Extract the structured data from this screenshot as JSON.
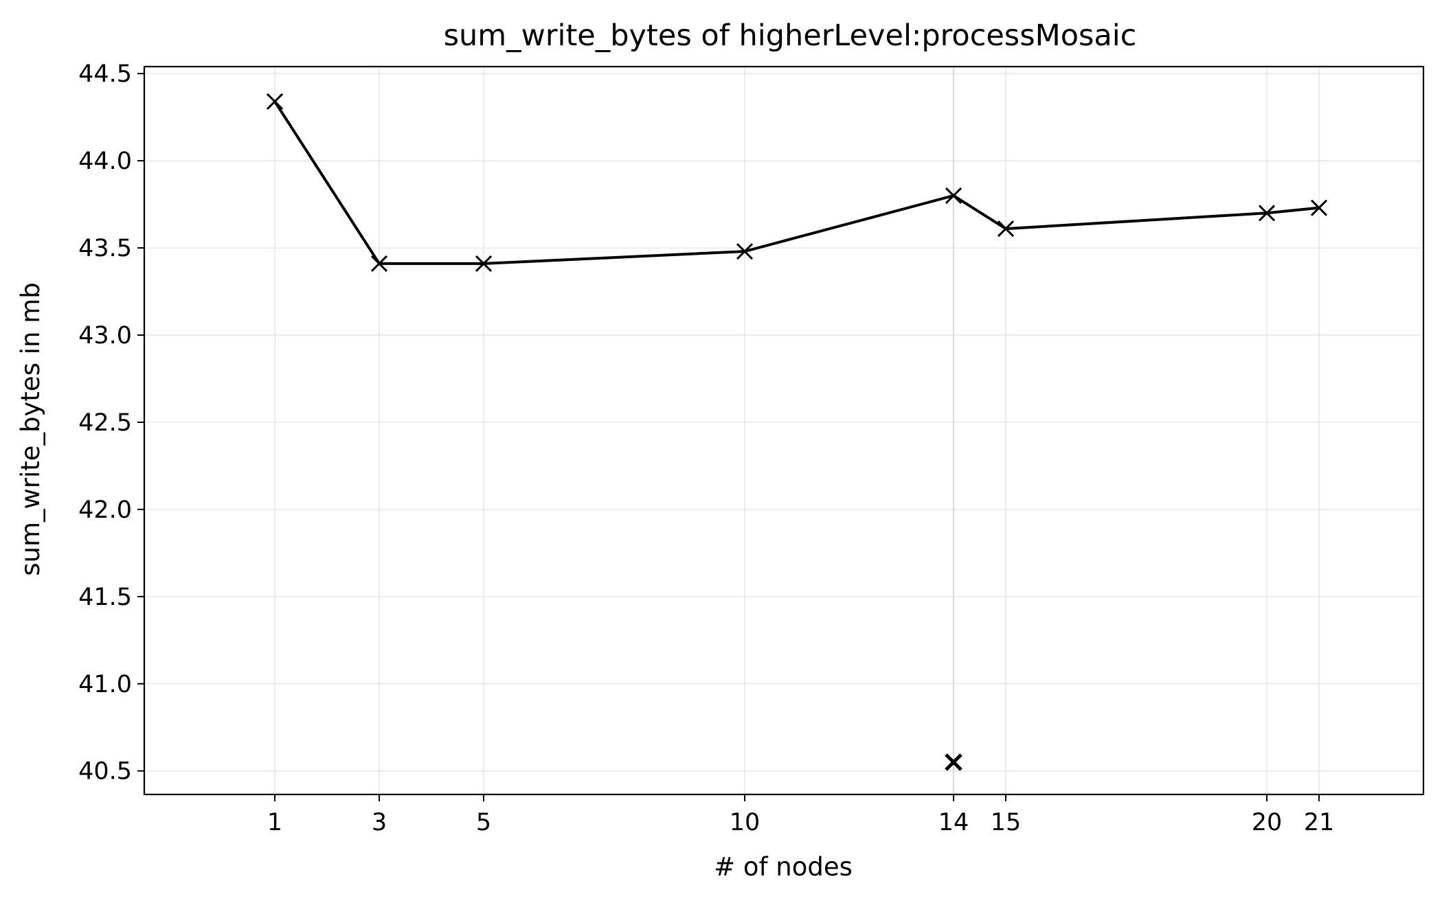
{
  "chart_data": {
    "type": "line",
    "title": "sum_write_bytes of higherLevel:processMosaic",
    "xlabel": "# of nodes",
    "ylabel": "sum_write_bytes in mb",
    "x_ticks": [
      1,
      3,
      5,
      10,
      14,
      15,
      20,
      21
    ],
    "y_ticks": [
      "40.5",
      "41.0",
      "41.5",
      "42.0",
      "42.5",
      "43.0",
      "43.5",
      "44.0",
      "44.5"
    ],
    "xlim": [
      -1.5,
      23.0
    ],
    "ylim": [
      40.365,
      44.54
    ],
    "grid": true,
    "series": [
      {
        "x": [
          1,
          3,
          5,
          10,
          14,
          15,
          20,
          21
        ],
        "y": [
          44.34,
          43.41,
          43.41,
          43.48,
          43.8,
          43.61,
          43.7,
          43.73
        ],
        "color": "#000000",
        "marker": "x"
      }
    ],
    "highlight_point": {
      "x": 14,
      "y": 40.55,
      "marker": "x",
      "color": "#000000"
    },
    "highlight_vline_x": 14
  }
}
